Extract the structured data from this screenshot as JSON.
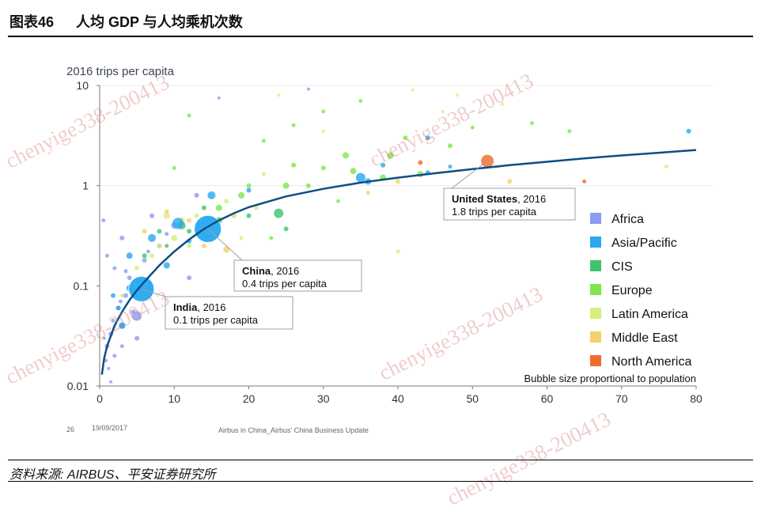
{
  "figure": {
    "number": "图表46",
    "title": "人均 GDP 与人均乘机次数"
  },
  "source": "资料来源: AIRBUS、平安证券研究所",
  "slide_footer": {
    "page": "26",
    "date": "19/09/2017",
    "caption": "Airbus in China_Airbus' China Business Update"
  },
  "watermark": "chenyige338-200413",
  "chart_data": {
    "type": "scatter",
    "title": "",
    "ylabel": "2016 trips per capita",
    "xlabel": "",
    "x_ticks": [
      "0",
      "10",
      "20",
      "30",
      "40",
      "50",
      "60",
      "70",
      "80"
    ],
    "y_ticks": [
      "0.01",
      "0.1",
      "1",
      "10"
    ],
    "xlim": [
      0,
      80
    ],
    "ylim": [
      0.01,
      10
    ],
    "y_scale": "log",
    "grid": "faint horizontal at 1 and 10",
    "legend_position": "right",
    "legend": [
      {
        "name": "Africa",
        "color": "#8c9cf2"
      },
      {
        "name": "Asia/Pacific",
        "color": "#27a8f0"
      },
      {
        "name": "CIS",
        "color": "#3fc46d"
      },
      {
        "name": "Europe",
        "color": "#7ee64a"
      },
      {
        "name": "Latin America",
        "color": "#d6f07a"
      },
      {
        "name": "Middle East",
        "color": "#f4d26a"
      },
      {
        "name": "North America",
        "color": "#f06c2a"
      }
    ],
    "note": "Bubble size proportional to population",
    "trend_curve": [
      [
        0.3,
        0.013
      ],
      [
        0.6,
        0.019
      ],
      [
        1,
        0.025
      ],
      [
        2,
        0.04
      ],
      [
        3,
        0.055
      ],
      [
        4,
        0.072
      ],
      [
        5,
        0.09
      ],
      [
        6,
        0.11
      ],
      [
        8,
        0.16
      ],
      [
        10,
        0.22
      ],
      [
        12,
        0.29
      ],
      [
        14,
        0.37
      ],
      [
        16,
        0.45
      ],
      [
        18,
        0.53
      ],
      [
        20,
        0.61
      ],
      [
        25,
        0.78
      ],
      [
        30,
        0.93
      ],
      [
        35,
        1.07
      ],
      [
        40,
        1.2
      ],
      [
        45,
        1.33
      ],
      [
        50,
        1.46
      ],
      [
        55,
        1.6
      ],
      [
        60,
        1.73
      ],
      [
        65,
        1.87
      ],
      [
        70,
        2.0
      ],
      [
        75,
        2.13
      ],
      [
        80,
        2.27
      ]
    ],
    "annotations": [
      {
        "bold": "China",
        "year": ", 2016",
        "text": "0.4 trips per capita",
        "x": 14.5,
        "y": 0.37
      },
      {
        "bold": "India",
        "year": ", 2016",
        "text": "0.1 trips per capita",
        "x": 5.6,
        "y": 0.093
      },
      {
        "bold": "United States",
        "year": ", 2016",
        "text": "1.8 trips per capita",
        "x": 52,
        "y": 1.76
      }
    ],
    "points": [
      {
        "x": 5.6,
        "y": 0.093,
        "r": 16,
        "region": "Asia/Pacific"
      },
      {
        "x": 14.5,
        "y": 0.37,
        "r": 17,
        "region": "Asia/Pacific"
      },
      {
        "x": 52,
        "y": 1.76,
        "r": 8,
        "region": "North America"
      },
      {
        "x": 5,
        "y": 0.05,
        "r": 6,
        "region": "Africa"
      },
      {
        "x": 3,
        "y": 0.04,
        "r": 4,
        "region": "Africa"
      },
      {
        "x": 1.5,
        "y": 0.033,
        "r": 3,
        "region": "Africa"
      },
      {
        "x": 1,
        "y": 0.025,
        "r": 3,
        "region": "Africa"
      },
      {
        "x": 2,
        "y": 0.02,
        "r": 2.5,
        "region": "Africa"
      },
      {
        "x": 0.8,
        "y": 0.018,
        "r": 2.5,
        "region": "Africa"
      },
      {
        "x": 1.2,
        "y": 0.015,
        "r": 2,
        "region": "Africa"
      },
      {
        "x": 2.5,
        "y": 0.06,
        "r": 3,
        "region": "Africa"
      },
      {
        "x": 3.5,
        "y": 0.08,
        "r": 3,
        "region": "Africa"
      },
      {
        "x": 4,
        "y": 0.12,
        "r": 3,
        "region": "Africa"
      },
      {
        "x": 2,
        "y": 0.15,
        "r": 2.5,
        "region": "Africa"
      },
      {
        "x": 1,
        "y": 0.2,
        "r": 2.5,
        "region": "Africa"
      },
      {
        "x": 3,
        "y": 0.3,
        "r": 3,
        "region": "Africa"
      },
      {
        "x": 6,
        "y": 0.18,
        "r": 3,
        "region": "Africa"
      },
      {
        "x": 8,
        "y": 0.25,
        "r": 3,
        "region": "Africa"
      },
      {
        "x": 0.5,
        "y": 0.45,
        "r": 2.5,
        "region": "Africa"
      },
      {
        "x": 4.5,
        "y": 0.055,
        "r": 3,
        "region": "Africa"
      },
      {
        "x": 2.8,
        "y": 0.07,
        "r": 2.5,
        "region": "Africa"
      },
      {
        "x": 1.8,
        "y": 0.045,
        "r": 2.5,
        "region": "Africa"
      },
      {
        "x": 0.6,
        "y": 0.03,
        "r": 2,
        "region": "Africa"
      },
      {
        "x": 12,
        "y": 0.12,
        "r": 3,
        "region": "Africa"
      },
      {
        "x": 10,
        "y": 0.4,
        "r": 4,
        "region": "Africa"
      },
      {
        "x": 7,
        "y": 0.5,
        "r": 3,
        "region": "Africa"
      },
      {
        "x": 5,
        "y": 0.03,
        "r": 3,
        "region": "Africa"
      },
      {
        "x": 3,
        "y": 0.025,
        "r": 2.5,
        "region": "Africa"
      },
      {
        "x": 1.5,
        "y": 0.011,
        "r": 2,
        "region": "Africa"
      },
      {
        "x": 13,
        "y": 0.8,
        "r": 3,
        "region": "Africa"
      },
      {
        "x": 9,
        "y": 0.33,
        "r": 2.5,
        "region": "Africa"
      },
      {
        "x": 3.5,
        "y": 0.14,
        "r": 2.5,
        "region": "Africa"
      },
      {
        "x": 6.5,
        "y": 0.22,
        "r": 2.5,
        "region": "Africa"
      },
      {
        "x": 16,
        "y": 7.5,
        "r": 2,
        "region": "Africa"
      },
      {
        "x": 28,
        "y": 9.2,
        "r": 2,
        "region": "Africa"
      },
      {
        "x": 4,
        "y": 0.095,
        "r": 4,
        "region": "Asia/Pacific"
      },
      {
        "x": 3,
        "y": 0.04,
        "r": 4,
        "region": "Asia/Pacific"
      },
      {
        "x": 15,
        "y": 0.8,
        "r": 5,
        "region": "Asia/Pacific"
      },
      {
        "x": 35,
        "y": 1.2,
        "r": 6,
        "region": "Asia/Pacific"
      },
      {
        "x": 36,
        "y": 1.1,
        "r": 4,
        "region": "Asia/Pacific"
      },
      {
        "x": 10.5,
        "y": 0.42,
        "r": 7,
        "region": "Asia/Pacific"
      },
      {
        "x": 7,
        "y": 0.3,
        "r": 5,
        "region": "Asia/Pacific"
      },
      {
        "x": 4,
        "y": 0.2,
        "r": 4,
        "region": "Asia/Pacific"
      },
      {
        "x": 9,
        "y": 0.16,
        "r": 4,
        "region": "Asia/Pacific"
      },
      {
        "x": 1.8,
        "y": 0.08,
        "r": 3,
        "region": "Asia/Pacific"
      },
      {
        "x": 2.5,
        "y": 0.06,
        "r": 3,
        "region": "Asia/Pacific"
      },
      {
        "x": 44,
        "y": 1.35,
        "r": 3,
        "region": "Asia/Pacific"
      },
      {
        "x": 47,
        "y": 1.55,
        "r": 2.5,
        "region": "Asia/Pacific"
      },
      {
        "x": 79,
        "y": 3.5,
        "r": 3,
        "region": "Asia/Pacific"
      },
      {
        "x": 44,
        "y": 3.0,
        "r": 3,
        "region": "Asia/Pacific"
      },
      {
        "x": 12,
        "y": 0.28,
        "r": 3,
        "region": "Asia/Pacific"
      },
      {
        "x": 38,
        "y": 1.6,
        "r": 3,
        "region": "Asia/Pacific"
      },
      {
        "x": 20,
        "y": 0.9,
        "r": 3,
        "region": "Asia/Pacific"
      },
      {
        "x": 11,
        "y": 0.4,
        "r": 5,
        "region": "CIS"
      },
      {
        "x": 24,
        "y": 0.53,
        "r": 6,
        "region": "CIS"
      },
      {
        "x": 8,
        "y": 0.35,
        "r": 3,
        "region": "CIS"
      },
      {
        "x": 6,
        "y": 0.2,
        "r": 3,
        "region": "CIS"
      },
      {
        "x": 12,
        "y": 0.35,
        "r": 3,
        "region": "CIS"
      },
      {
        "x": 9,
        "y": 0.25,
        "r": 2.5,
        "region": "CIS"
      },
      {
        "x": 20,
        "y": 0.5,
        "r": 3,
        "region": "CIS"
      },
      {
        "x": 16,
        "y": 0.45,
        "r": 4,
        "region": "CIS"
      },
      {
        "x": 14,
        "y": 0.6,
        "r": 3,
        "region": "CIS"
      },
      {
        "x": 25,
        "y": 0.37,
        "r": 3,
        "region": "CIS"
      },
      {
        "x": 33,
        "y": 2.0,
        "r": 4,
        "region": "Europe"
      },
      {
        "x": 39,
        "y": 2.0,
        "r": 4,
        "region": "Europe"
      },
      {
        "x": 43,
        "y": 1.3,
        "r": 4,
        "region": "Europe"
      },
      {
        "x": 38,
        "y": 1.2,
        "r": 4,
        "region": "Europe"
      },
      {
        "x": 47,
        "y": 2.5,
        "r": 3,
        "region": "Europe"
      },
      {
        "x": 41,
        "y": 3.0,
        "r": 3,
        "region": "Europe"
      },
      {
        "x": 34,
        "y": 1.4,
        "r": 4,
        "region": "Europe"
      },
      {
        "x": 30,
        "y": 1.5,
        "r": 3,
        "region": "Europe"
      },
      {
        "x": 25,
        "y": 1.0,
        "r": 4,
        "region": "Europe"
      },
      {
        "x": 20,
        "y": 1.0,
        "r": 3,
        "region": "Europe"
      },
      {
        "x": 19,
        "y": 0.8,
        "r": 4,
        "region": "Europe"
      },
      {
        "x": 16,
        "y": 0.6,
        "r": 4,
        "region": "Europe"
      },
      {
        "x": 26,
        "y": 1.6,
        "r": 3,
        "region": "Europe"
      },
      {
        "x": 28,
        "y": 1.0,
        "r": 3,
        "region": "Europe"
      },
      {
        "x": 58,
        "y": 4.2,
        "r": 2.5,
        "region": "Europe"
      },
      {
        "x": 63,
        "y": 3.5,
        "r": 2.5,
        "region": "Europe"
      },
      {
        "x": 50,
        "y": 3.8,
        "r": 2.5,
        "region": "Europe"
      },
      {
        "x": 22,
        "y": 2.8,
        "r": 2.5,
        "region": "Europe"
      },
      {
        "x": 26,
        "y": 4.0,
        "r": 2.5,
        "region": "Europe"
      },
      {
        "x": 35,
        "y": 7.0,
        "r": 2.5,
        "region": "Europe"
      },
      {
        "x": 30,
        "y": 5.5,
        "r": 2.5,
        "region": "Europe"
      },
      {
        "x": 12,
        "y": 5.0,
        "r": 2.5,
        "region": "Europe"
      },
      {
        "x": 10,
        "y": 1.5,
        "r": 2.5,
        "region": "Europe"
      },
      {
        "x": 23,
        "y": 0.3,
        "r": 2.5,
        "region": "Europe"
      },
      {
        "x": 32,
        "y": 0.7,
        "r": 2.5,
        "region": "Europe"
      },
      {
        "x": 9,
        "y": 0.5,
        "r": 4,
        "region": "Latin America"
      },
      {
        "x": 11,
        "y": 0.45,
        "r": 4,
        "region": "Latin America"
      },
      {
        "x": 13,
        "y": 0.5,
        "r": 3,
        "region": "Latin America"
      },
      {
        "x": 10,
        "y": 0.3,
        "r": 4,
        "region": "Latin America"
      },
      {
        "x": 8,
        "y": 0.25,
        "r": 3,
        "region": "Latin America"
      },
      {
        "x": 15,
        "y": 0.4,
        "r": 4,
        "region": "Latin America"
      },
      {
        "x": 7,
        "y": 0.2,
        "r": 3,
        "region": "Latin America"
      },
      {
        "x": 5,
        "y": 0.15,
        "r": 3,
        "region": "Latin America"
      },
      {
        "x": 3,
        "y": 0.08,
        "r": 2.5,
        "region": "Latin America"
      },
      {
        "x": 17,
        "y": 0.7,
        "r": 3,
        "region": "Latin America"
      },
      {
        "x": 12,
        "y": 0.25,
        "r": 3,
        "region": "Latin America"
      },
      {
        "x": 21,
        "y": 0.6,
        "r": 3,
        "region": "Latin America"
      },
      {
        "x": 19,
        "y": 0.3,
        "r": 2.5,
        "region": "Latin America"
      },
      {
        "x": 22,
        "y": 1.3,
        "r": 2.5,
        "region": "Latin America"
      },
      {
        "x": 6,
        "y": 0.09,
        "r": 2.5,
        "region": "Latin America"
      },
      {
        "x": 40,
        "y": 0.22,
        "r": 2.5,
        "region": "Latin America"
      },
      {
        "x": 24,
        "y": 8.0,
        "r": 2,
        "region": "Latin America"
      },
      {
        "x": 48,
        "y": 8.0,
        "r": 2,
        "region": "Latin America"
      },
      {
        "x": 54,
        "y": 6.5,
        "r": 2,
        "region": "Latin America"
      },
      {
        "x": 42,
        "y": 9.0,
        "r": 2,
        "region": "Latin America"
      },
      {
        "x": 46,
        "y": 5.5,
        "r": 2,
        "region": "Latin America"
      },
      {
        "x": 30,
        "y": 3.5,
        "r": 2,
        "region": "Latin America"
      },
      {
        "x": 76,
        "y": 1.55,
        "r": 2.5,
        "region": "Latin America"
      },
      {
        "x": 17,
        "y": 0.23,
        "r": 4,
        "region": "Middle East"
      },
      {
        "x": 9,
        "y": 0.55,
        "r": 3,
        "region": "Middle East"
      },
      {
        "x": 12,
        "y": 0.45,
        "r": 3,
        "region": "Middle East"
      },
      {
        "x": 6,
        "y": 0.35,
        "r": 3,
        "region": "Middle East"
      },
      {
        "x": 40,
        "y": 1.1,
        "r": 3,
        "region": "Middle East"
      },
      {
        "x": 55,
        "y": 1.1,
        "r": 3,
        "region": "Middle East"
      },
      {
        "x": 18,
        "y": 0.5,
        "r": 3,
        "region": "Middle East"
      },
      {
        "x": 14,
        "y": 0.25,
        "r": 3,
        "region": "Middle East"
      },
      {
        "x": 36,
        "y": 0.85,
        "r": 2.5,
        "region": "Middle East"
      },
      {
        "x": 43,
        "y": 1.7,
        "r": 3,
        "region": "North America"
      },
      {
        "x": 65,
        "y": 1.1,
        "r": 2.5,
        "region": "North America"
      }
    ]
  }
}
